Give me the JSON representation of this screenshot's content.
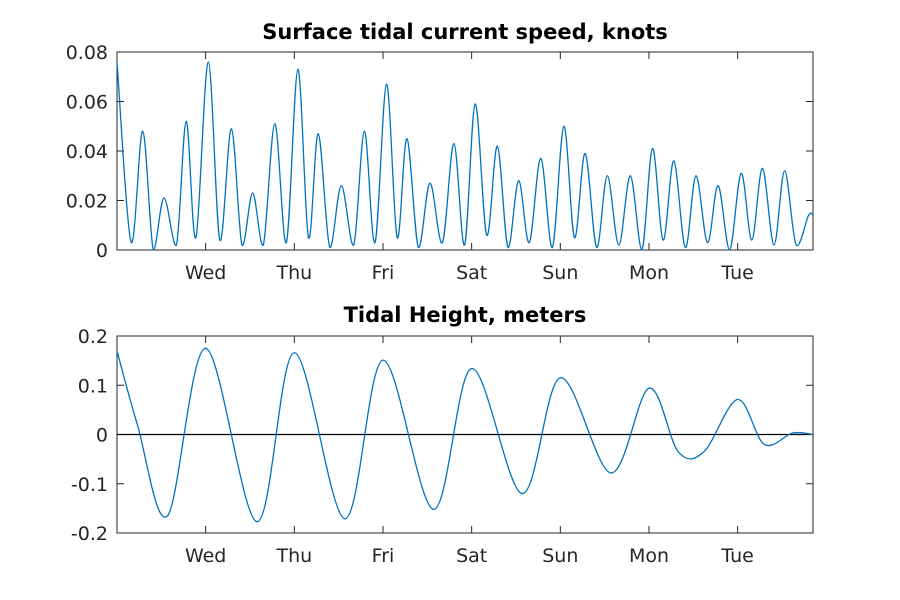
{
  "chart_data": [
    {
      "type": "line",
      "title": "Surface tidal current speed, knots",
      "xlabel": "",
      "ylabel": "",
      "xlim": [
        0,
        7.85
      ],
      "ylim": [
        0,
        0.08
      ],
      "x_ticks": [
        1,
        2,
        3,
        4,
        5,
        6,
        7
      ],
      "x_tick_labels": [
        "Wed",
        "Thu",
        "Fri",
        "Sat",
        "Sun",
        "Mon",
        "Tue"
      ],
      "y_ticks": [
        0,
        0.02,
        0.04,
        0.06,
        0.08
      ],
      "y_tick_labels": [
        "0",
        "0.02",
        "0.04",
        "0.06",
        "0.08"
      ],
      "grid": false,
      "series": [
        {
          "color": "#0072bd",
          "x": [
            0,
            0.16,
            0.29,
            0.41,
            0.53,
            0.67,
            0.78,
            0.89,
            1.03,
            1.16,
            1.29,
            1.41,
            1.53,
            1.65,
            1.78,
            1.91,
            2.04,
            2.16,
            2.27,
            2.4,
            2.53,
            2.67,
            2.79,
            2.91,
            3.04,
            3.16,
            3.27,
            3.4,
            3.53,
            3.67,
            3.8,
            3.92,
            4.04,
            4.17,
            4.29,
            4.41,
            4.53,
            4.65,
            4.78,
            4.91,
            5.04,
            5.16,
            5.28,
            5.41,
            5.53,
            5.66,
            5.79,
            5.92,
            6.04,
            6.16,
            6.28,
            6.41,
            6.53,
            6.66,
            6.78,
            6.91,
            7.04,
            7.16,
            7.28,
            7.41,
            7.53,
            7.66,
            7.8,
            7.85
          ],
          "y": [
            0.076,
            0.003,
            0.048,
            0.0,
            0.021,
            0.002,
            0.052,
            0.005,
            0.076,
            0.004,
            0.049,
            0.002,
            0.023,
            0.002,
            0.051,
            0.003,
            0.073,
            0.005,
            0.047,
            0.001,
            0.026,
            0.002,
            0.048,
            0.003,
            0.067,
            0.005,
            0.045,
            0.001,
            0.027,
            0.003,
            0.043,
            0.002,
            0.059,
            0.006,
            0.042,
            0.001,
            0.028,
            0.003,
            0.037,
            0.001,
            0.05,
            0.005,
            0.039,
            0.001,
            0.03,
            0.002,
            0.03,
            0.0,
            0.041,
            0.004,
            0.036,
            0.001,
            0.03,
            0.003,
            0.026,
            0.0,
            0.031,
            0.004,
            0.033,
            0.002,
            0.032,
            0.002,
            0.014,
            0.014
          ]
        }
      ]
    },
    {
      "type": "line",
      "title": "Tidal Height, meters",
      "xlabel": "",
      "ylabel": "",
      "xlim": [
        0,
        7.85
      ],
      "ylim": [
        -0.2,
        0.2
      ],
      "x_ticks": [
        1,
        2,
        3,
        4,
        5,
        6,
        7
      ],
      "x_tick_labels": [
        "Wed",
        "Thu",
        "Fri",
        "Sat",
        "Sun",
        "Mon",
        "Tue"
      ],
      "y_ticks": [
        -0.2,
        -0.1,
        0,
        0.1,
        0.2
      ],
      "y_tick_labels": [
        "-0.2",
        "-0.1",
        "0",
        "0.1",
        "0.2"
      ],
      "grid": false,
      "zero_line": true,
      "series": [
        {
          "color": "#0072bd",
          "x": [
            0,
            0.23,
            0.57,
            1.0,
            1.58,
            2.0,
            2.57,
            3.0,
            3.57,
            4.0,
            4.57,
            5.0,
            5.57,
            6.0,
            6.33,
            6.62,
            7.0,
            7.3,
            7.62,
            7.85
          ],
          "y": [
            0.17,
            0.02,
            -0.165,
            0.175,
            -0.177,
            0.166,
            -0.171,
            0.151,
            -0.152,
            0.134,
            -0.12,
            0.115,
            -0.078,
            0.094,
            -0.035,
            -0.035,
            0.071,
            -0.02,
            0.003,
            0.0
          ]
        }
      ]
    }
  ]
}
